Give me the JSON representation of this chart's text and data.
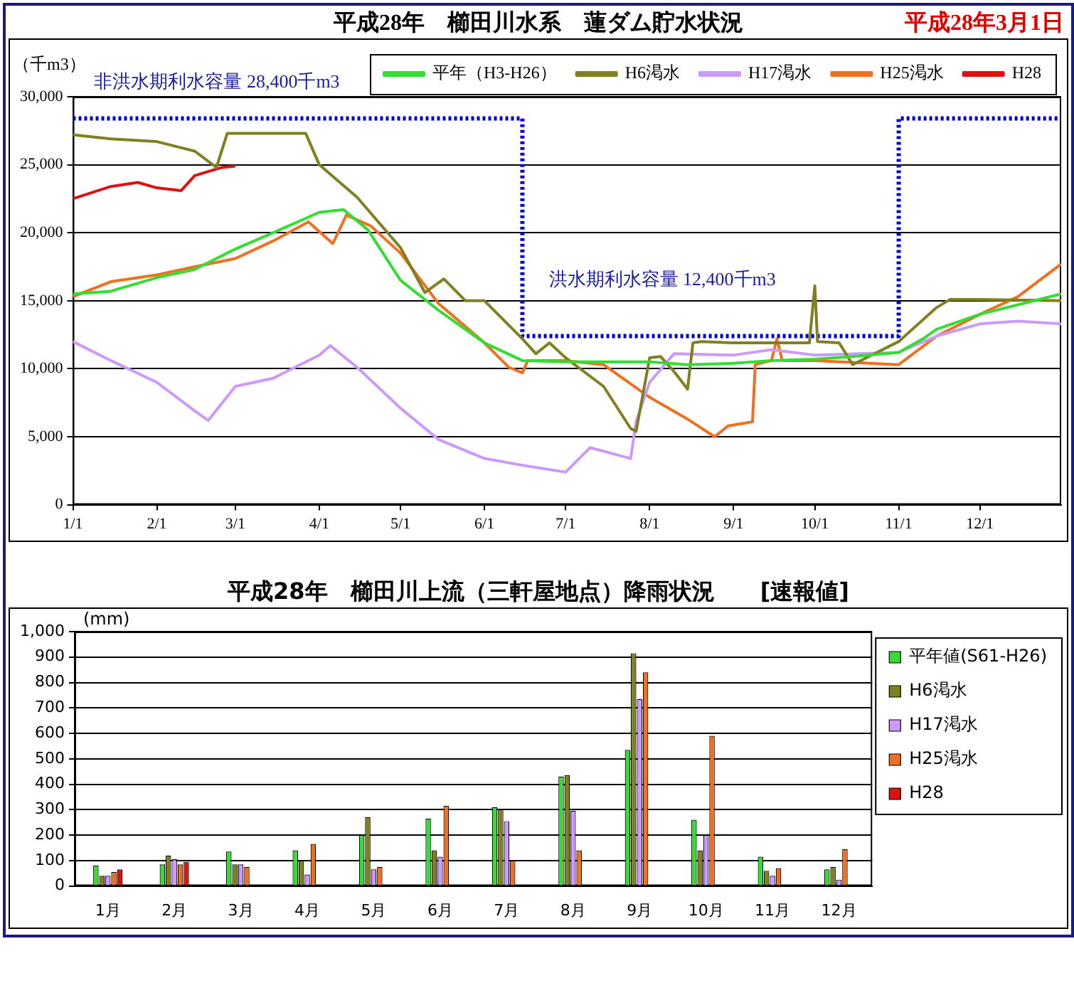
{
  "chart_data": [
    {
      "type": "line",
      "title": "平成28年　櫛田川水系　蓮ダム貯水状況",
      "subtitle": "平成28年3月1日",
      "ylabel": "（千m3）",
      "xlim": [
        "--01-01",
        "--12-31"
      ],
      "xticks": [
        {
          "value": "--01-01",
          "label": "1/1"
        },
        {
          "value": "--02-01",
          "label": "2/1"
        },
        {
          "value": "--03-01",
          "label": "3/1"
        },
        {
          "value": "--04-01",
          "label": "4/1"
        },
        {
          "value": "--05-01",
          "label": "5/1"
        },
        {
          "value": "--06-01",
          "label": "6/1"
        },
        {
          "value": "--07-01",
          "label": "7/1"
        },
        {
          "value": "--08-01",
          "label": "8/1"
        },
        {
          "value": "--09-01",
          "label": "9/1"
        },
        {
          "value": "--10-01",
          "label": "10/1"
        },
        {
          "value": "--11-01",
          "label": "11/1"
        },
        {
          "value": "--12-01",
          "label": "12/1"
        }
      ],
      "ylim": [
        0,
        30000
      ],
      "yticks": [
        0,
        {
          "value": 5000,
          "label": "5,000"
        },
        {
          "value": 10000,
          "label": "10,000"
        },
        {
          "value": 15000,
          "label": "15,000"
        },
        {
          "value": 20000,
          "label": "20,000"
        },
        {
          "value": 25000,
          "label": "25,000"
        },
        {
          "value": 30000,
          "label": "30,000"
        }
      ],
      "grid": "y",
      "legend": "top",
      "marker": "none",
      "line_style": "solid",
      "annotations": [
        "非洪水期利水容量 28,400千m3",
        "洪水期利水容量 12,400千m3"
      ],
      "series": [
        {
          "name": "平年（H3-H26）",
          "color": "#33dd33",
          "x": [
            "--01-01",
            "--01-15",
            "--02-01",
            "--02-15",
            "--03-01",
            "--03-15",
            "--04-01",
            "--04-10",
            "--04-19",
            "--05-01",
            "--05-15",
            "--06-01",
            "--06-15",
            "--07-01",
            "--08-01",
            "--08-15",
            "--09-01",
            "--09-15",
            "--10-01",
            "--10-15",
            "--11-01",
            "--11-10",
            "--11-15",
            "--12-01",
            "--12-15",
            "--12-31"
          ],
          "values": [
            15500,
            15700,
            16700,
            17300,
            18800,
            20000,
            21500,
            21700,
            20200,
            16500,
            14300,
            11900,
            10600,
            10500,
            10500,
            10300,
            10400,
            10600,
            10700,
            10900,
            11200,
            12200,
            12900,
            14000,
            14700,
            15500
          ]
        },
        {
          "name": "H6渇水",
          "color": "#808020",
          "x": [
            "--01-01",
            "--01-15",
            "--02-01",
            "--02-15",
            "--02-23",
            "--02-27",
            "--03-15",
            "--03-27",
            "--04-01",
            "--04-15",
            "--05-01",
            "--05-10",
            "--05-17",
            "--05-25",
            "--06-01",
            "--06-15",
            "--06-20",
            "--06-25",
            "--07-01",
            "--07-15",
            "--07-25",
            "--07-27",
            "--08-01",
            "--08-05",
            "--08-10",
            "--08-15",
            "--08-17",
            "--08-20",
            "--09-01",
            "--09-29",
            "--10-01",
            "--10-02",
            "--10-10",
            "--10-15",
            "--11-01",
            "--11-15",
            "--11-20",
            "--12-01",
            "--12-31"
          ],
          "values": [
            27200,
            26900,
            26700,
            26000,
            24800,
            27300,
            27300,
            27300,
            25000,
            22600,
            18900,
            15600,
            16600,
            15000,
            15000,
            12200,
            11100,
            11900,
            10800,
            8700,
            5600,
            5400,
            10800,
            10900,
            9800,
            8500,
            11900,
            12000,
            11900,
            11900,
            16100,
            12000,
            11900,
            10300,
            12000,
            14500,
            15100,
            15100,
            15000
          ]
        },
        {
          "name": "H17渇水",
          "color": "#cc99ff",
          "x": [
            "--01-01",
            "--01-15",
            "--02-01",
            "--02-15",
            "--02-20",
            "--03-01",
            "--03-15",
            "--04-01",
            "--04-05",
            "--04-15",
            "--05-01",
            "--05-15",
            "--06-01",
            "--06-15",
            "--07-01",
            "--07-10",
            "--07-25",
            "--07-27",
            "--08-01",
            "--08-10",
            "--09-01",
            "--09-15",
            "--10-01",
            "--11-01",
            "--11-15",
            "--12-01",
            "--12-15",
            "--12-31"
          ],
          "values": [
            12000,
            10600,
            9000,
            6900,
            6200,
            8700,
            9300,
            11000,
            11700,
            10100,
            7100,
            4800,
            3400,
            2900,
            2400,
            4200,
            3400,
            6100,
            9000,
            11100,
            11000,
            11400,
            11000,
            11200,
            12400,
            13300,
            13500,
            13300
          ]
        },
        {
          "name": "H25渇水",
          "color": "#f07020",
          "x": [
            "--01-01",
            "--01-15",
            "--02-01",
            "--02-15",
            "--03-01",
            "--03-15",
            "--03-28",
            "--04-06",
            "--04-11",
            "--04-20",
            "--05-01",
            "--05-15",
            "--06-01",
            "--06-10",
            "--06-15",
            "--06-17",
            "--07-01",
            "--07-15",
            "--08-01",
            "--08-15",
            "--08-25",
            "--08-30",
            "--09-08",
            "--09-09",
            "--09-15",
            "--09-17",
            "--09-19",
            "--10-01",
            "--11-01",
            "--11-15",
            "--12-01",
            "--12-15",
            "--12-31"
          ],
          "values": [
            15300,
            16400,
            16900,
            17500,
            18100,
            19400,
            20800,
            19200,
            21300,
            20500,
            18500,
            14800,
            11900,
            10100,
            9700,
            10600,
            10600,
            10300,
            7900,
            6300,
            5000,
            5800,
            6100,
            10300,
            10600,
            12200,
            10600,
            10600,
            10300,
            12400,
            14000,
            15300,
            17700
          ]
        },
        {
          "name": "H28",
          "color": "#dd1111",
          "x": [
            "--01-01",
            "--01-15",
            "--01-25",
            "--02-01",
            "--02-10",
            "--02-15",
            "--02-25",
            "--03-01"
          ],
          "values": [
            22500,
            23400,
            23700,
            23300,
            23100,
            24200,
            24800,
            24900
          ]
        },
        {
          "type": "step",
          "color": "#0000cc",
          "line_style": "dotted",
          "x": [
            "--01-01",
            "--06-15",
            "--11-01",
            "--12-31"
          ],
          "values": [
            28400,
            12400,
            28400,
            28400
          ]
        }
      ]
    },
    {
      "type": "bar",
      "title": "平成28年　櫛田川上流（三軒屋地点）降雨状況　　[速報値]",
      "ylabel": "(mm)",
      "categories": [
        "1月",
        "2月",
        "3月",
        "4月",
        "5月",
        "6月",
        "7月",
        "8月",
        "9月",
        "10月",
        "11月",
        "12月"
      ],
      "ylim": [
        0,
        1000
      ],
      "yticks": [
        0,
        100,
        200,
        300,
        400,
        500,
        600,
        700,
        800,
        900,
        {
          "value": 1000,
          "label": "1,000"
        }
      ],
      "grid": "y",
      "legend": "top right",
      "series": [
        {
          "name": "平年値(S61-H26)",
          "color": "#33dd33",
          "values": [
            80,
            85,
            135,
            140,
            200,
            265,
            310,
            430,
            535,
            260,
            115,
            65
          ]
        },
        {
          "name": "H6渇水",
          "color": "#808020",
          "values": [
            40,
            120,
            85,
            100,
            270,
            140,
            300,
            435,
            915,
            140,
            60,
            75
          ]
        },
        {
          "name": "H17渇水",
          "color": "#cc99ff",
          "values": [
            40,
            105,
            85,
            45,
            65,
            115,
            255,
            295,
            735,
            200,
            40,
            25
          ]
        },
        {
          "name": "H25渇水",
          "color": "#f07020",
          "values": [
            55,
            85,
            75,
            165,
            75,
            315,
            100,
            140,
            840,
            590,
            70,
            145
          ]
        },
        {
          "name": "H28",
          "color": "#dd1111",
          "values": [
            65,
            95,
            null,
            null,
            null,
            null,
            null,
            null,
            null,
            null,
            null,
            null
          ]
        }
      ]
    }
  ]
}
